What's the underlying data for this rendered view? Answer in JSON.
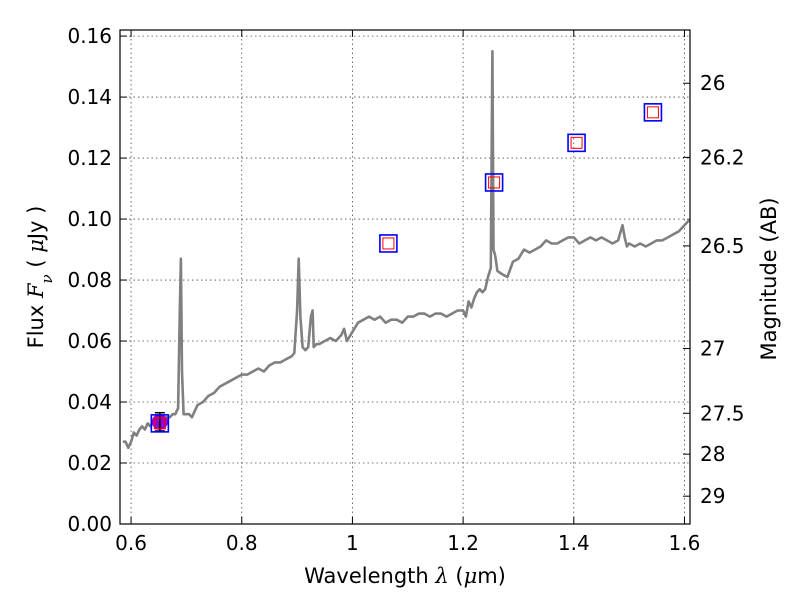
{
  "chart_data": {
    "type": "line",
    "xlabel": {
      "prefix": "Wavelength  ",
      "symbol": "λ",
      "open": " (",
      "unit_symbol": "μ",
      "unit_rest": "m)"
    },
    "ylabel": {
      "prefix": "Flux  ",
      "symbol": "F",
      "subscript": "ν",
      "open": "  ( ",
      "unit_symbol": "μ",
      "unit_rest": "Jy )"
    },
    "y2label": "Magnitude (AB)",
    "xlim": [
      0.58,
      1.61
    ],
    "ylim": [
      0.0,
      0.162
    ],
    "x_ticks": [
      {
        "value": 0.6,
        "label": "0.6"
      },
      {
        "value": 0.8,
        "label": "0.8"
      },
      {
        "value": 1.0,
        "label": "1"
      },
      {
        "value": 1.2,
        "label": "1.2"
      },
      {
        "value": 1.4,
        "label": "1.4"
      },
      {
        "value": 1.6,
        "label": "1.6"
      }
    ],
    "y_ticks": [
      {
        "value": 0.0,
        "label": "0.00"
      },
      {
        "value": 0.02,
        "label": "0.02"
      },
      {
        "value": 0.04,
        "label": "0.04"
      },
      {
        "value": 0.06,
        "label": "0.06"
      },
      {
        "value": 0.08,
        "label": "0.08"
      },
      {
        "value": 0.1,
        "label": "0.10"
      },
      {
        "value": 0.12,
        "label": "0.12"
      },
      {
        "value": 0.14,
        "label": "0.14"
      },
      {
        "value": 0.16,
        "label": "0.16"
      }
    ],
    "y2_ticks": [
      {
        "mag": 26,
        "label": "26"
      },
      {
        "mag": 26.2,
        "label": "26.2"
      },
      {
        "mag": 26.5,
        "label": "26.5"
      },
      {
        "mag": 27,
        "label": "27"
      },
      {
        "mag": 27.5,
        "label": "27.5"
      },
      {
        "mag": 28,
        "label": "28"
      },
      {
        "mag": 29,
        "label": "29"
      }
    ],
    "grid": true,
    "colors": {
      "spectrum": "#808080",
      "photometry_outer": "#0000ff",
      "photometry_inner": "#ff0000",
      "measured_point": "#9400d3",
      "error_bar": "#000000"
    },
    "series": [
      {
        "kind": "spectrum",
        "x": [
          0.585,
          0.59,
          0.595,
          0.6,
          0.605,
          0.61,
          0.615,
          0.62,
          0.625,
          0.63,
          0.635,
          0.64,
          0.645,
          0.65,
          0.655,
          0.66,
          0.665,
          0.67,
          0.675,
          0.68,
          0.685,
          0.688,
          0.69,
          0.692,
          0.695,
          0.7,
          0.705,
          0.71,
          0.715,
          0.72,
          0.73,
          0.74,
          0.75,
          0.76,
          0.77,
          0.78,
          0.79,
          0.8,
          0.81,
          0.82,
          0.83,
          0.84,
          0.85,
          0.86,
          0.87,
          0.88,
          0.89,
          0.895,
          0.9,
          0.903,
          0.906,
          0.91,
          0.915,
          0.92,
          0.925,
          0.928,
          0.93,
          0.935,
          0.94,
          0.95,
          0.96,
          0.97,
          0.98,
          0.985,
          0.99,
          1.0,
          1.01,
          1.02,
          1.03,
          1.04,
          1.05,
          1.06,
          1.07,
          1.08,
          1.09,
          1.1,
          1.11,
          1.12,
          1.13,
          1.14,
          1.15,
          1.16,
          1.17,
          1.18,
          1.19,
          1.2,
          1.205,
          1.21,
          1.215,
          1.22,
          1.225,
          1.23,
          1.235,
          1.24,
          1.245,
          1.25,
          1.253,
          1.255,
          1.258,
          1.262,
          1.27,
          1.28,
          1.29,
          1.3,
          1.31,
          1.32,
          1.33,
          1.34,
          1.35,
          1.36,
          1.37,
          1.38,
          1.39,
          1.4,
          1.41,
          1.42,
          1.43,
          1.44,
          1.45,
          1.46,
          1.47,
          1.48,
          1.488,
          1.492,
          1.496,
          1.5,
          1.51,
          1.52,
          1.53,
          1.54,
          1.55,
          1.56,
          1.57,
          1.58,
          1.59,
          1.6,
          1.61
        ],
        "y": [
          0.027,
          0.027,
          0.025,
          0.027,
          0.03,
          0.029,
          0.031,
          0.032,
          0.031,
          0.033,
          0.032,
          0.034,
          0.032,
          0.033,
          0.034,
          0.034,
          0.035,
          0.035,
          0.036,
          0.036,
          0.038,
          0.07,
          0.087,
          0.05,
          0.036,
          0.036,
          0.036,
          0.035,
          0.037,
          0.039,
          0.04,
          0.042,
          0.043,
          0.045,
          0.046,
          0.047,
          0.048,
          0.049,
          0.049,
          0.05,
          0.051,
          0.05,
          0.052,
          0.053,
          0.053,
          0.054,
          0.055,
          0.056,
          0.07,
          0.087,
          0.068,
          0.058,
          0.057,
          0.058,
          0.068,
          0.07,
          0.058,
          0.059,
          0.059,
          0.06,
          0.061,
          0.06,
          0.062,
          0.064,
          0.06,
          0.063,
          0.066,
          0.067,
          0.068,
          0.067,
          0.068,
          0.066,
          0.067,
          0.067,
          0.066,
          0.068,
          0.068,
          0.069,
          0.069,
          0.068,
          0.069,
          0.069,
          0.068,
          0.069,
          0.07,
          0.07,
          0.068,
          0.073,
          0.071,
          0.074,
          0.076,
          0.077,
          0.076,
          0.077,
          0.081,
          0.084,
          0.155,
          0.09,
          0.088,
          0.083,
          0.082,
          0.081,
          0.086,
          0.087,
          0.09,
          0.089,
          0.09,
          0.091,
          0.093,
          0.092,
          0.092,
          0.093,
          0.094,
          0.094,
          0.092,
          0.093,
          0.094,
          0.093,
          0.094,
          0.093,
          0.092,
          0.093,
          0.098,
          0.094,
          0.091,
          0.092,
          0.091,
          0.092,
          0.091,
          0.092,
          0.093,
          0.093,
          0.094,
          0.095,
          0.096,
          0.098,
          0.1
        ]
      }
    ],
    "photometry": [
      {
        "x": 0.652,
        "y": 0.033
      },
      {
        "x": 1.065,
        "y": 0.092
      },
      {
        "x": 1.256,
        "y": 0.112
      },
      {
        "x": 1.405,
        "y": 0.125
      },
      {
        "x": 1.543,
        "y": 0.135
      }
    ],
    "measured": {
      "x": 0.652,
      "y": 0.0335,
      "yerr": 0.003
    }
  }
}
